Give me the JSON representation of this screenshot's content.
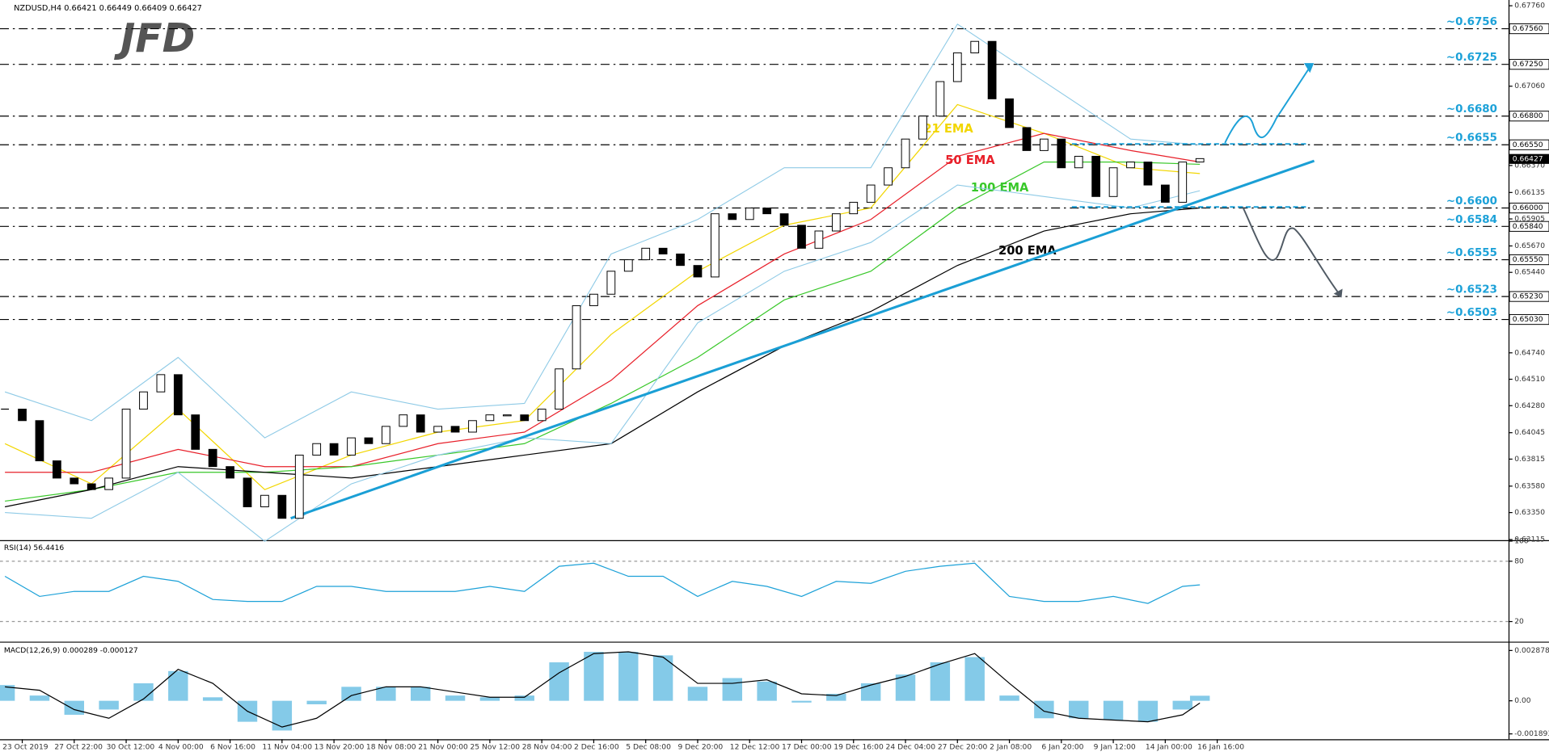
{
  "chart_data": {
    "type": "candlestick",
    "header": "NZDUSD,H4  0.66421 0.66449 0.66409 0.66427",
    "logo": "JFD",
    "xlim": [
      -0.285,
      86.82
    ],
    "ylim": [
      0.6311,
      0.6781
    ],
    "categories": [
      null,
      "23 Oct 2019",
      null,
      null,
      "27 Oct 22:00",
      null,
      null,
      "30 Oct 12:00",
      null,
      null,
      "4 Nov 00:00",
      null,
      null,
      "6 Nov 16:00",
      null,
      null,
      "11 Nov 04:00",
      null,
      null,
      "13 Nov 20:00",
      null,
      null,
      "18 Nov 08:00",
      null,
      null,
      "21 Nov 00:00",
      null,
      null,
      "25 Nov 12:00",
      null,
      null,
      "28 Nov 04:00",
      null,
      null,
      "2 Dec 16:00",
      null,
      null,
      "5 Dec 08:00",
      null,
      null,
      "9 Dec 20:00",
      null,
      null,
      "12 Dec 12:00",
      null,
      null,
      "17 Dec 00:00",
      null,
      null,
      "19 Dec 16:00",
      null,
      null,
      "24 Dec 04:00",
      null,
      null,
      "27 Dec 20:00",
      null,
      null,
      "2 Jan 08:00",
      null,
      null,
      "6 Jan 20:00",
      null,
      null,
      "9 Jan 12:00",
      null,
      null,
      "14 Jan 00:00",
      null,
      null,
      "16 Jan 16:00"
    ],
    "close": [
      0.6425,
      0.6415,
      0.638,
      0.6365,
      0.636,
      0.6355,
      0.6365,
      0.6425,
      0.644,
      0.6455,
      0.642,
      0.639,
      0.6375,
      0.6365,
      0.634,
      0.635,
      0.633,
      0.6385,
      0.6395,
      0.6385,
      0.64,
      0.6395,
      0.641,
      0.642,
      0.6405,
      0.641,
      0.6405,
      0.6415,
      0.642,
      0.642,
      0.6415,
      0.6425,
      0.646,
      0.6515,
      0.6525,
      0.6545,
      0.6555,
      0.6565,
      0.656,
      0.655,
      0.654,
      0.6595,
      0.659,
      0.66,
      0.6595,
      0.6585,
      0.6565,
      0.658,
      0.6595,
      0.6605,
      0.662,
      0.6635,
      0.666,
      0.668,
      0.671,
      0.6735,
      0.6745,
      0.6695,
      0.667,
      0.665,
      0.666,
      0.6635,
      0.6645,
      0.661,
      0.6635,
      0.664,
      0.662,
      0.6605,
      0.664,
      0.6643,
      null
    ],
    "up_color": "#ffffff",
    "down_color": "#000000",
    "yticks": [
      {
        "value": 0.6776,
        "label": "0.67760"
      },
      {
        "value": 0.6706,
        "label": "0.67060"
      },
      {
        "value": 0.6637,
        "label": "0.66370"
      },
      {
        "value": 0.66135,
        "label": "0.66135"
      },
      {
        "value": 0.65905,
        "label": "0.65905"
      },
      {
        "value": 0.6567,
        "label": "0.65670"
      },
      {
        "value": 0.6544,
        "label": "0.65440"
      },
      {
        "value": 0.6474,
        "label": "0.64740"
      },
      {
        "value": 0.6451,
        "label": "0.64510"
      },
      {
        "value": 0.6428,
        "label": "0.64280"
      },
      {
        "value": 0.64045,
        "label": "0.64045"
      },
      {
        "value": 0.63815,
        "label": "0.63815"
      },
      {
        "value": 0.6358,
        "label": "0.63580"
      },
      {
        "value": 0.6335,
        "label": "0.63350"
      },
      {
        "value": 0.63115,
        "label": "0.63115"
      }
    ],
    "series": [
      {
        "name": "21 EMA",
        "color": "#f2d600",
        "x": [
          0,
          5,
          10,
          15,
          20,
          25,
          30,
          35,
          40,
          45,
          50,
          55,
          60,
          65,
          69
        ],
        "values": [
          0.6395,
          0.636,
          0.6425,
          0.6355,
          0.6385,
          0.6405,
          0.6415,
          0.649,
          0.6545,
          0.6585,
          0.66,
          0.669,
          0.6665,
          0.6635,
          0.663
        ]
      },
      {
        "name": "50 EMA",
        "color": "#e8202a",
        "x": [
          0,
          5,
          10,
          15,
          20,
          25,
          30,
          35,
          40,
          45,
          50,
          55,
          60,
          65,
          69
        ],
        "values": [
          0.637,
          0.637,
          0.639,
          0.6375,
          0.6375,
          0.6395,
          0.6405,
          0.645,
          0.6515,
          0.656,
          0.659,
          0.6645,
          0.6665,
          0.665,
          0.664
        ]
      },
      {
        "name": "100 EMA",
        "color": "#39c82a",
        "x": [
          0,
          5,
          10,
          15,
          20,
          25,
          30,
          35,
          40,
          45,
          50,
          55,
          60,
          65,
          69
        ],
        "values": [
          0.6345,
          0.6355,
          0.637,
          0.637,
          0.6375,
          0.6385,
          0.6395,
          0.643,
          0.647,
          0.652,
          0.6545,
          0.66,
          0.664,
          0.664,
          0.6638
        ]
      },
      {
        "name": "200 EMA",
        "color": "#000000",
        "x": [
          0,
          5,
          10,
          15,
          20,
          25,
          30,
          35,
          40,
          45,
          50,
          55,
          60,
          65,
          69
        ],
        "values": [
          0.634,
          0.6355,
          0.6375,
          0.637,
          0.6365,
          0.6375,
          0.6385,
          0.6395,
          0.644,
          0.648,
          0.651,
          0.655,
          0.658,
          0.6595,
          0.66
        ]
      },
      {
        "color": "#8ecae6",
        "x": [
          0,
          5,
          10,
          15,
          20,
          25,
          30,
          35,
          40,
          45,
          50,
          55,
          60,
          65,
          69
        ],
        "values": [
          0.644,
          0.6415,
          0.647,
          0.64,
          0.644,
          0.6425,
          0.643,
          0.656,
          0.659,
          0.6635,
          0.6635,
          0.676,
          0.671,
          0.666,
          0.6655
        ]
      },
      {
        "color": "#8ecae6",
        "x": [
          0,
          5,
          10,
          15,
          20,
          25,
          30,
          35,
          40,
          45,
          50,
          55,
          60,
          65,
          69
        ],
        "values": [
          0.6335,
          0.633,
          0.637,
          0.631,
          0.636,
          0.6385,
          0.64,
          0.6395,
          0.65,
          0.6545,
          0.657,
          0.662,
          0.661,
          0.66,
          0.6615
        ]
      }
    ],
    "trendline": {
      "color": "#1a9fd5",
      "x": [
        16.5,
        75.6
      ],
      "values": [
        0.633,
        0.6641
      ]
    },
    "levels": [
      {
        "value": 0.6756,
        "label": "~0.6756",
        "axis_label": "0.67560"
      },
      {
        "value": 0.6725,
        "label": "~0.6725",
        "axis_label": "0.67250"
      },
      {
        "value": 0.668,
        "label": "~0.6680",
        "axis_label": "0.66800"
      },
      {
        "value": 0.6655,
        "label": "~0.6655",
        "axis_label": "0.66550"
      },
      {
        "value": 0.66,
        "label": "~0.6600",
        "axis_label": "0.66000"
      },
      {
        "value": 0.6584,
        "label": "~0.6584",
        "axis_label": "0.65840"
      },
      {
        "value": 0.6555,
        "label": "~0.6555",
        "axis_label": "0.65550"
      },
      {
        "value": 0.6523,
        "label": "~0.6523",
        "axis_label": "0.65230"
      },
      {
        "value": 0.6503,
        "label": "~0.6503",
        "axis_label": "0.65030"
      }
    ],
    "level_color": "#1ca1d8",
    "current_price": {
      "value": 0.66427,
      "label": "0.66427"
    },
    "rsi": {
      "title": "RSI(14) 56.4416",
      "color": "#1ca1d8",
      "ylim": [
        0,
        100
      ],
      "yticks": [
        20,
        80,
        100
      ],
      "x": [
        0,
        2,
        4,
        6,
        8,
        10,
        12,
        14,
        16,
        18,
        20,
        22,
        24,
        26,
        28,
        30,
        32,
        34,
        36,
        38,
        40,
        42,
        44,
        46,
        48,
        50,
        52,
        54,
        56,
        58,
        60,
        62,
        64,
        66,
        68,
        69
      ],
      "values": [
        65,
        45,
        50,
        50,
        65,
        60,
        42,
        40,
        40,
        55,
        55,
        50,
        50,
        50,
        55,
        50,
        75,
        78,
        65,
        65,
        45,
        60,
        55,
        45,
        60,
        58,
        70,
        75,
        78,
        45,
        40,
        40,
        45,
        38,
        55,
        56.4416
      ]
    },
    "macd": {
      "title": "MACD(12,26,9) 0.000289 -0.000127",
      "color": "#5bb8e0",
      "signal_color": "#000000",
      "ylim": [
        -0.0022,
        0.00327
      ],
      "yticks": [
        0.002878,
        {
          "value": 0,
          "label": "0.00"
        },
        -0.001893
      ],
      "x": [
        0,
        2,
        4,
        6,
        8,
        10,
        12,
        14,
        16,
        18,
        20,
        22,
        24,
        26,
        28,
        30,
        32,
        34,
        36,
        38,
        40,
        42,
        44,
        46,
        48,
        50,
        52,
        54,
        56,
        58,
        60,
        62,
        64,
        66,
        68,
        69
      ],
      "histogram": [
        0.0009,
        0.0003,
        -0.0008,
        -0.0005,
        0.001,
        0.0017,
        0.0002,
        -0.0012,
        -0.0017,
        -0.0002,
        0.0008,
        0.0008,
        0.0008,
        0.0003,
        0.0002,
        0.0003,
        0.0022,
        0.0028,
        0.0028,
        0.0026,
        0.0008,
        0.0013,
        0.0011,
        -0.0001,
        0.0004,
        0.001,
        0.0015,
        0.0022,
        0.0025,
        0.0003,
        -0.001,
        -0.001,
        -0.0011,
        -0.0012,
        -0.0005,
        0.000289
      ],
      "signal": [
        0.0008,
        0.0006,
        -0.0005,
        -0.001,
        0.0001,
        0.0018,
        0.001,
        -0.0006,
        -0.0015,
        -0.001,
        0.0003,
        0.0008,
        0.0008,
        0.0005,
        0.0002,
        0.0002,
        0.0016,
        0.0027,
        0.0028,
        0.0025,
        0.001,
        0.001,
        0.0012,
        0.0004,
        0.0003,
        0.0009,
        0.0014,
        0.0021,
        0.0027,
        0.001,
        -0.0006,
        -0.001,
        -0.0011,
        -0.0012,
        -0.0008,
        -0.000127
      ]
    }
  }
}
